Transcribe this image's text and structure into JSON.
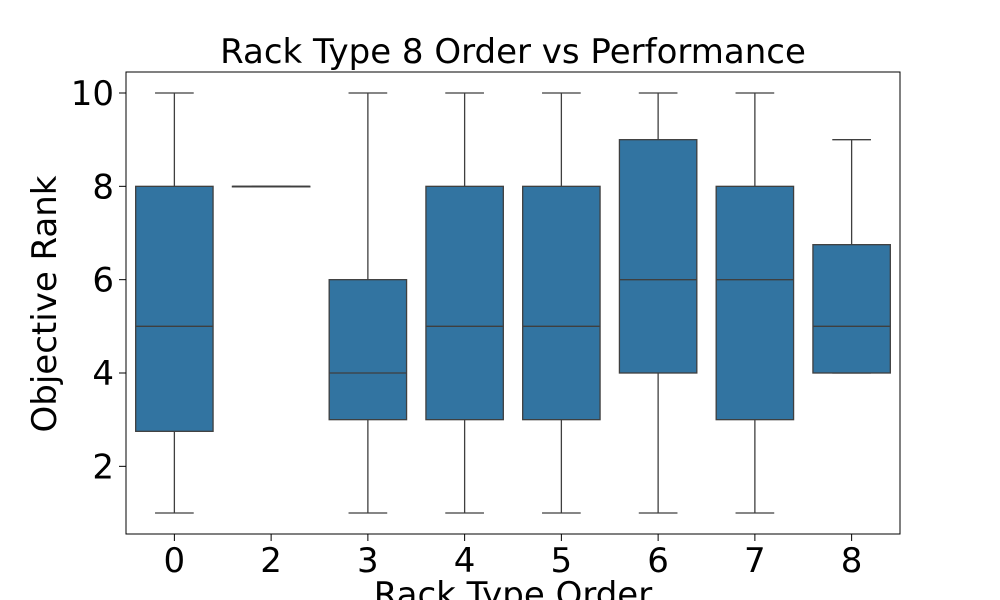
{
  "chart_data": {
    "type": "box",
    "title": "Rack Type 8 Order vs Performance",
    "xlabel": "Rack Type Order",
    "ylabel": "Objective Rank",
    "categories": [
      "0",
      "2",
      "3",
      "4",
      "5",
      "6",
      "7",
      "8"
    ],
    "boxes": [
      {
        "category": "0",
        "min": 1,
        "q1": 2.75,
        "median": 5,
        "q3": 8,
        "max": 10
      },
      {
        "category": "2",
        "min": 8,
        "q1": 8,
        "median": 8,
        "q3": 8,
        "max": 8
      },
      {
        "category": "3",
        "min": 1,
        "q1": 3,
        "median": 4,
        "q3": 6,
        "max": 10
      },
      {
        "category": "4",
        "min": 1,
        "q1": 3,
        "median": 5,
        "q3": 8,
        "max": 10
      },
      {
        "category": "5",
        "min": 1,
        "q1": 3,
        "median": 5,
        "q3": 8,
        "max": 10
      },
      {
        "category": "6",
        "min": 1,
        "q1": 4,
        "median": 6,
        "q3": 9,
        "max": 10
      },
      {
        "category": "7",
        "min": 1,
        "q1": 3,
        "median": 6,
        "q3": 8,
        "max": 10
      },
      {
        "category": "8",
        "min": 4,
        "q1": 4,
        "median": 5,
        "q3": 6.75,
        "max": 9
      }
    ],
    "yticks": [
      2,
      4,
      6,
      8,
      10
    ],
    "ylim": [
      0.55,
      10.45
    ],
    "grid": false,
    "colors": {
      "box_fill": "#3274a1",
      "line": "#3f3f3f",
      "axis": "#000000"
    }
  }
}
